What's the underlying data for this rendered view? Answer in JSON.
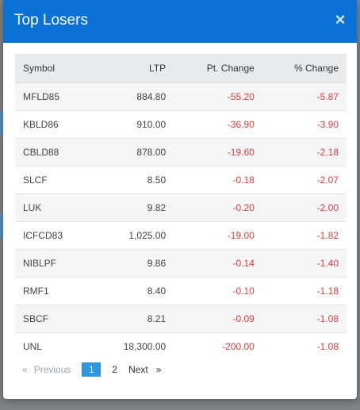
{
  "modal": {
    "title": "Top Losers",
    "close_glyph": "×"
  },
  "table": {
    "headers": [
      "Symbol",
      "LTP",
      "Pt. Change",
      "% Change"
    ],
    "rows": [
      {
        "symbol": "MFLD85",
        "ltp": "884.80",
        "pt_change": "-55.20",
        "pct_change": "-5.87"
      },
      {
        "symbol": "KBLD86",
        "ltp": "910.00",
        "pt_change": "-36.90",
        "pct_change": "-3.90"
      },
      {
        "symbol": "CBLD88",
        "ltp": "878.00",
        "pt_change": "-19.60",
        "pct_change": "-2.18"
      },
      {
        "symbol": "SLCF",
        "ltp": "8.50",
        "pt_change": "-0.18",
        "pct_change": "-2.07"
      },
      {
        "symbol": "LUK",
        "ltp": "9.82",
        "pt_change": "-0.20",
        "pct_change": "-2.00"
      },
      {
        "symbol": "ICFCD83",
        "ltp": "1,025.00",
        "pt_change": "-19.00",
        "pct_change": "-1.82"
      },
      {
        "symbol": "NIBLPF",
        "ltp": "9.86",
        "pt_change": "-0.14",
        "pct_change": "-1.40"
      },
      {
        "symbol": "RMF1",
        "ltp": "8.40",
        "pt_change": "-0.10",
        "pct_change": "-1.18"
      },
      {
        "symbol": "SBCF",
        "ltp": "8.21",
        "pt_change": "-0.09",
        "pct_change": "-1.08"
      },
      {
        "symbol": "UNL",
        "ltp": "18,300.00",
        "pt_change": "-200.00",
        "pct_change": "-1.08"
      }
    ]
  },
  "pagination": {
    "prev_arrow": "«",
    "prev_label": "Previous",
    "pages": [
      "1",
      "2"
    ],
    "active_page": "1",
    "next_label": "Next",
    "next_arrow": "»"
  },
  "colors": {
    "header_bg": "#0a72d6",
    "negative": "#e03c3c",
    "active_page": "#2f96e0"
  }
}
